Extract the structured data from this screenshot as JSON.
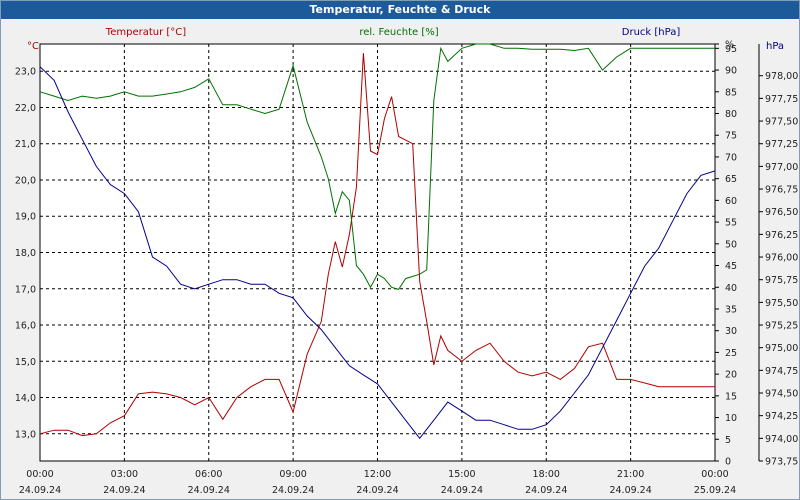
{
  "window": {
    "title": "Temperatur, Feuchte & Druck"
  },
  "chart_data": {
    "type": "line",
    "title": "Temperatur, Feuchte & Druck",
    "x_ticks": [
      {
        "time": "00:00",
        "date": "24.09.24"
      },
      {
        "time": "03:00",
        "date": "24.09.24"
      },
      {
        "time": "06:00",
        "date": "24.09.24"
      },
      {
        "time": "09:00",
        "date": "24.09.24"
      },
      {
        "time": "12:00",
        "date": "24.09.24"
      },
      {
        "time": "15:00",
        "date": "24.09.24"
      },
      {
        "time": "18:00",
        "date": "24.09.24"
      },
      {
        "time": "21:00",
        "date": "24.09.24"
      },
      {
        "time": "00:00",
        "date": "25.09.24"
      }
    ],
    "x_range_hours": [
      0,
      24
    ],
    "grid": true,
    "axes": {
      "temp": {
        "unit": "°C",
        "label": "Temperatur [°C]",
        "range": [
          12.25,
          23.75
        ],
        "color": "#b00000",
        "ticks": [
          "13,0",
          "14,0",
          "15,0",
          "16,0",
          "17,0",
          "18,0",
          "19,0",
          "20,0",
          "21,0",
          "22,0",
          "23,0"
        ],
        "tick_values": [
          13,
          14,
          15,
          16,
          17,
          18,
          19,
          20,
          21,
          22,
          23
        ]
      },
      "humidity": {
        "unit": "%",
        "label": "rel. Feuchte [%]",
        "range": [
          0,
          96
        ],
        "color": "#007000",
        "ticks": [
          "0",
          "5",
          "10",
          "15",
          "20",
          "25",
          "30",
          "35",
          "40",
          "45",
          "50",
          "55",
          "60",
          "65",
          "70",
          "75",
          "80",
          "85",
          "90",
          "95",
          "%"
        ],
        "tick_values": [
          0,
          5,
          10,
          15,
          20,
          25,
          30,
          35,
          40,
          45,
          50,
          55,
          60,
          65,
          70,
          75,
          80,
          85,
          90,
          95,
          96
        ]
      },
      "pressure": {
        "unit": "hPa",
        "label": "Druck [hPa]",
        "range": [
          973.75,
          978.35
        ],
        "color": "#00008b",
        "ticks": [
          "973,75",
          "974,00",
          "974,25",
          "974,50",
          "974,75",
          "975,00",
          "975,25",
          "975,50",
          "975,75",
          "976,00",
          "976,25",
          "976,50",
          "976,75",
          "977,00",
          "977,25",
          "977,50",
          "977,75",
          "978,00"
        ],
        "tick_values": [
          973.75,
          974.0,
          974.25,
          974.5,
          974.75,
          975.0,
          975.25,
          975.5,
          975.75,
          976.0,
          976.25,
          976.5,
          976.75,
          977.0,
          977.25,
          977.5,
          977.75,
          978.0
        ]
      }
    },
    "series": [
      {
        "name": "Temperatur [°C]",
        "axis": "temp",
        "color": "#b00000",
        "x": [
          0,
          0.5,
          1,
          1.5,
          2,
          2.5,
          3,
          3.5,
          4,
          4.5,
          5,
          5.5,
          6,
          6.5,
          7,
          7.5,
          8,
          8.5,
          9,
          9.5,
          10,
          10.25,
          10.5,
          10.75,
          11,
          11.25,
          11.5,
          11.75,
          12,
          12.25,
          12.5,
          12.75,
          13,
          13.25,
          13.5,
          13.75,
          14,
          14.25,
          14.5,
          15,
          15.5,
          16,
          16.5,
          17,
          17.5,
          18,
          18.5,
          19,
          19.5,
          20,
          20.5,
          21,
          21.5,
          22,
          22.5,
          23,
          23.5,
          24
        ],
        "values": [
          13.0,
          13.1,
          13.1,
          12.95,
          13.0,
          13.3,
          13.5,
          14.1,
          14.15,
          14.1,
          14.0,
          13.8,
          14.0,
          13.4,
          14.0,
          14.3,
          14.5,
          14.5,
          13.6,
          15.2,
          16.1,
          17.4,
          18.3,
          17.6,
          18.5,
          19.8,
          23.5,
          20.8,
          20.7,
          21.7,
          22.3,
          21.2,
          21.1,
          21.0,
          17.2,
          16.1,
          14.9,
          15.7,
          15.3,
          15.0,
          15.3,
          15.5,
          15.0,
          14.7,
          14.6,
          14.7,
          14.5,
          14.8,
          15.4,
          15.5,
          14.5,
          14.5,
          14.4,
          14.3,
          14.3,
          14.3,
          14.3,
          14.3
        ]
      },
      {
        "name": "rel. Feuchte [%]",
        "axis": "humidity",
        "color": "#007000",
        "x": [
          0,
          0.5,
          1,
          1.5,
          2,
          2.5,
          3,
          3.5,
          4,
          4.5,
          5,
          5.5,
          6,
          6.5,
          7,
          7.5,
          8,
          8.5,
          9,
          9.5,
          10,
          10.25,
          10.5,
          10.75,
          11,
          11.25,
          11.5,
          11.75,
          12,
          12.25,
          12.5,
          12.75,
          13,
          13.5,
          13.75,
          14,
          14.25,
          14.5,
          15,
          15.5,
          16,
          16.5,
          17,
          17.5,
          18,
          18.5,
          19,
          19.5,
          20,
          20.5,
          21,
          21.5,
          22,
          22.5,
          23,
          23.5,
          24
        ],
        "values": [
          85,
          84,
          83,
          84,
          83.5,
          84,
          85,
          84,
          84,
          84.5,
          85,
          86,
          88,
          82,
          82,
          81,
          80,
          81,
          91,
          78,
          70,
          65,
          57,
          62,
          60,
          45,
          43,
          40,
          43,
          42,
          40,
          39.5,
          42,
          43,
          44,
          83,
          95,
          92,
          95,
          96,
          96,
          95,
          95,
          94.8,
          94.8,
          94.8,
          94.5,
          95,
          90,
          93,
          95,
          95,
          95,
          95,
          95,
          95,
          95
        ]
      },
      {
        "name": "Druck [hPa]",
        "axis": "pressure",
        "color": "#00008b",
        "x": [
          0,
          0.5,
          1,
          1.5,
          2,
          2.5,
          3,
          3.5,
          4,
          4.5,
          5,
          5.5,
          6,
          6.5,
          7,
          7.5,
          8,
          8.5,
          9,
          9.5,
          10,
          10.5,
          11,
          11.5,
          12,
          12.5,
          13,
          13.5,
          14,
          14.5,
          15,
          15.5,
          16,
          16.5,
          17,
          17.5,
          18,
          18.5,
          19,
          19.5,
          20,
          20.5,
          21,
          21.5,
          22,
          22.5,
          23,
          23.5,
          24
        ],
        "values": [
          978.1,
          977.95,
          977.6,
          977.3,
          977.0,
          976.8,
          976.7,
          976.5,
          976.0,
          975.9,
          975.7,
          975.65,
          975.7,
          975.75,
          975.75,
          975.7,
          975.7,
          975.6,
          975.55,
          975.35,
          975.2,
          975.0,
          974.8,
          974.7,
          974.6,
          974.4,
          974.2,
          974.0,
          974.2,
          974.4,
          974.3,
          974.2,
          974.2,
          974.15,
          974.1,
          974.1,
          974.15,
          974.3,
          974.5,
          974.7,
          975.0,
          975.3,
          975.6,
          975.9,
          976.1,
          976.4,
          976.7,
          976.9,
          976.95
        ]
      }
    ]
  }
}
